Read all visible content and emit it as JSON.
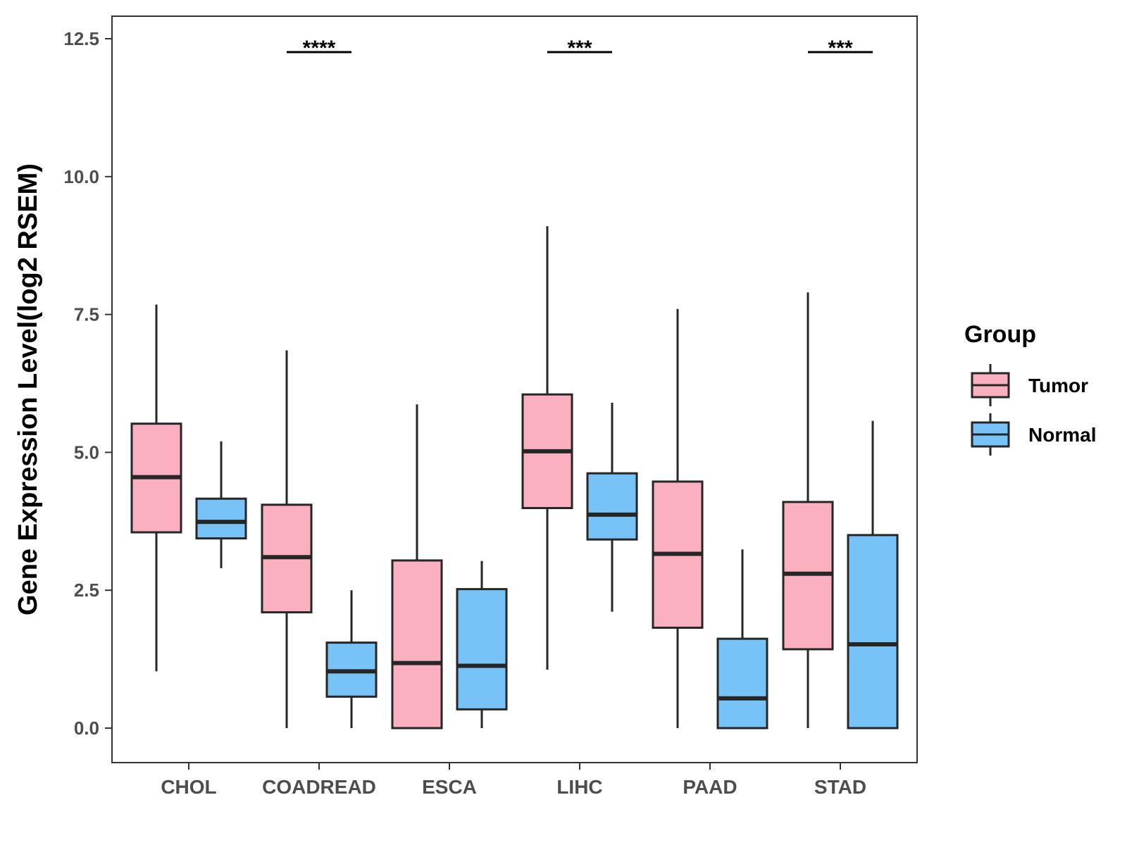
{
  "chart_data": {
    "type": "boxplot",
    "title": "",
    "xlabel": "",
    "ylabel": "Gene Expression Level(log2 RSEM)",
    "ylim": [
      -0.6,
      12.95
    ],
    "yticks": [
      0.0,
      2.5,
      5.0,
      7.5,
      10.0,
      12.5
    ],
    "ytick_labels": [
      "0.0",
      "2.5",
      "5.0",
      "7.5",
      "10.0",
      "12.5"
    ],
    "categories": [
      "CHOL",
      "COADREAD",
      "ESCA",
      "LIHC",
      "PAAD",
      "STAD"
    ],
    "legend": {
      "title": "Group",
      "position": "right",
      "entries": [
        {
          "name": "Tumor",
          "color": "#fbb0c0"
        },
        {
          "name": "Normal",
          "color": "#77c2f7"
        }
      ]
    },
    "series": [
      {
        "name": "Tumor",
        "color": "#fbb0c0",
        "boxes": [
          {
            "whisker_low": 1.03,
            "q1": 3.55,
            "median": 4.55,
            "q3": 5.52,
            "whisker_high": 7.68
          },
          {
            "whisker_low": 0.0,
            "q1": 2.1,
            "median": 3.1,
            "q3": 4.05,
            "whisker_high": 6.85
          },
          {
            "whisker_low": 0.0,
            "q1": 0.0,
            "median": 1.18,
            "q3": 3.04,
            "whisker_high": 5.87
          },
          {
            "whisker_low": 1.06,
            "q1": 3.99,
            "median": 5.02,
            "q3": 6.05,
            "whisker_high": 9.1
          },
          {
            "whisker_low": 0.0,
            "q1": 1.82,
            "median": 3.16,
            "q3": 4.47,
            "whisker_high": 7.6
          },
          {
            "whisker_low": 0.0,
            "q1": 1.43,
            "median": 2.8,
            "q3": 4.1,
            "whisker_high": 7.9
          }
        ]
      },
      {
        "name": "Normal",
        "color": "#77c2f7",
        "boxes": [
          {
            "whisker_low": 2.9,
            "q1": 3.44,
            "median": 3.74,
            "q3": 4.16,
            "whisker_high": 5.2
          },
          {
            "whisker_low": 0.0,
            "q1": 0.57,
            "median": 1.03,
            "q3": 1.55,
            "whisker_high": 2.5
          },
          {
            "whisker_low": 0.0,
            "q1": 0.34,
            "median": 1.13,
            "q3": 2.52,
            "whisker_high": 3.03
          },
          {
            "whisker_low": 2.11,
            "q1": 3.42,
            "median": 3.87,
            "q3": 4.62,
            "whisker_high": 5.9
          },
          {
            "whisker_low": 0.0,
            "q1": 0.0,
            "median": 0.54,
            "q3": 1.62,
            "whisker_high": 3.24
          },
          {
            "whisker_low": 0.0,
            "q1": 0.0,
            "median": 1.52,
            "q3": 3.5,
            "whisker_high": 5.57
          }
        ]
      }
    ],
    "significance": [
      {
        "category": "COADREAD",
        "label": "****"
      },
      {
        "category": "LIHC",
        "label": "***"
      },
      {
        "category": "STAD",
        "label": "***"
      }
    ]
  }
}
